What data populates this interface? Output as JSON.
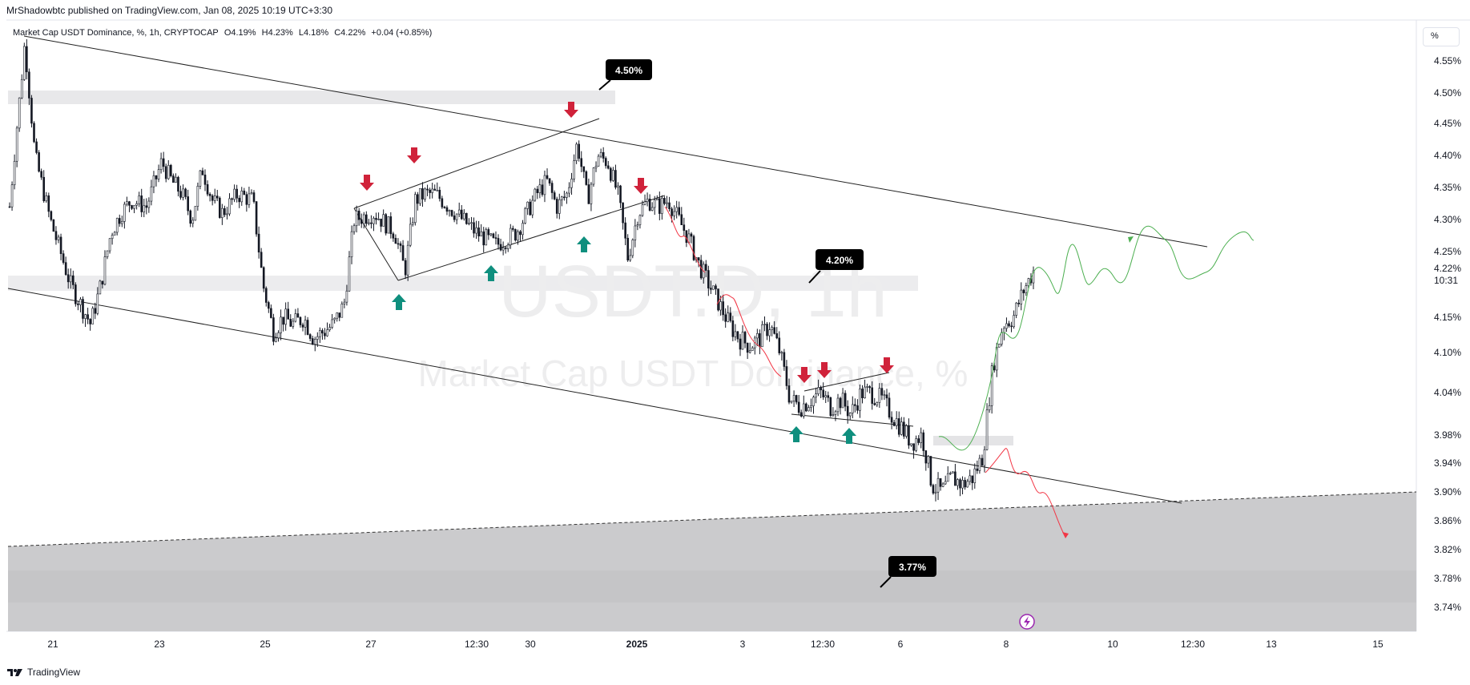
{
  "header": {
    "publisher_line": "MrShadowbtc published on TradingView.com, Jan 08, 2025 10:19 UTC+3:30"
  },
  "legend": {
    "symbol": "Market Cap USDT Dominance, %, 1h, CRYPTOCAP",
    "open": "O4.19%",
    "high": "H4.23%",
    "low": "L4.18%",
    "close": "C4.22%",
    "change": "+0.04 (+0.85%)"
  },
  "watermark": {
    "line1": "USDT.D, 1h",
    "line2": "Market Cap USDT Dominance, %"
  },
  "unit_button": "%",
  "footer": {
    "brand": "TradingView",
    "logo": "tradingview-logo"
  },
  "colors": {
    "candle": "#131722",
    "down_arrow": "#d0223a",
    "up_arrow": "#0f8f7e",
    "forecast_up": "#4caf50",
    "forecast_down": "#f23645",
    "zone": "#e8e8ea",
    "lower_zone": "#c8c8ca",
    "badge": "#000000"
  },
  "chart_data": {
    "type": "candlestick",
    "symbol": "USDT.D",
    "interval": "1h",
    "ylim": [
      3.715,
      4.6
    ],
    "y_axis": "right",
    "y_ticks": [
      "4.55%",
      "4.50%",
      "4.45%",
      "4.40%",
      "4.35%",
      "4.30%",
      "4.25%",
      "4.15%",
      "4.10%",
      "4.04%",
      "3.98%",
      "3.94%",
      "3.90%",
      "3.86%",
      "3.82%",
      "3.78%",
      "3.74%"
    ],
    "last_price": {
      "label": "4.22%",
      "value": 4.22,
      "countdown": "10:31"
    },
    "x_ticks": [
      {
        "label": "21",
        "bold": false
      },
      {
        "label": "23",
        "bold": false
      },
      {
        "label": "25",
        "bold": false
      },
      {
        "label": "27",
        "bold": false
      },
      {
        "label": "12:30",
        "bold": false
      },
      {
        "label": "30",
        "bold": false
      },
      {
        "label": "2025",
        "bold": true
      },
      {
        "label": "3",
        "bold": false
      },
      {
        "label": "12:30",
        "bold": false
      },
      {
        "label": "6",
        "bold": false
      },
      {
        "label": "8",
        "bold": false
      },
      {
        "label": "10",
        "bold": false
      },
      {
        "label": "12:30",
        "bold": false
      },
      {
        "label": "13",
        "bold": false
      },
      {
        "label": "15",
        "bold": false
      }
    ],
    "price_path": [
      [
        0,
        4.32
      ],
      [
        1.5,
        4.58
      ],
      [
        2.5,
        4.4
      ],
      [
        4,
        4.3
      ],
      [
        6,
        4.2
      ],
      [
        8,
        4.14
      ],
      [
        9,
        4.2
      ],
      [
        10,
        4.28
      ],
      [
        11,
        4.31
      ],
      [
        12,
        4.33
      ],
      [
        13.5,
        4.32
      ],
      [
        15,
        4.39
      ],
      [
        16,
        4.36
      ],
      [
        17,
        4.34
      ],
      [
        18,
        4.3
      ],
      [
        19,
        4.38
      ],
      [
        20,
        4.33
      ],
      [
        21,
        4.31
      ],
      [
        22.5,
        4.34
      ],
      [
        24,
        4.33
      ],
      [
        25,
        4.2
      ],
      [
        26,
        4.13
      ],
      [
        27,
        4.15
      ],
      [
        28,
        4.14
      ],
      [
        29,
        4.15
      ],
      [
        30,
        4.12
      ],
      [
        32,
        4.14
      ],
      [
        33,
        4.17
      ],
      [
        34,
        4.3
      ],
      [
        36,
        4.31
      ],
      [
        38,
        4.28
      ],
      [
        39,
        4.22
      ],
      [
        40,
        4.33
      ],
      [
        41,
        4.34
      ],
      [
        42,
        4.34
      ],
      [
        44,
        4.31
      ],
      [
        46,
        4.28
      ],
      [
        48,
        4.26
      ],
      [
        50,
        4.28
      ],
      [
        52,
        4.34
      ],
      [
        53,
        4.36
      ],
      [
        54,
        4.32
      ],
      [
        55,
        4.34
      ],
      [
        56,
        4.42
      ],
      [
        57,
        4.33
      ],
      [
        58,
        4.4
      ],
      [
        59,
        4.39
      ],
      [
        60,
        4.34
      ],
      [
        61,
        4.24
      ],
      [
        62,
        4.31
      ],
      [
        63,
        4.33
      ],
      [
        64,
        4.32
      ],
      [
        65,
        4.33
      ],
      [
        66,
        4.3
      ],
      [
        67,
        4.27
      ],
      [
        68,
        4.23
      ],
      [
        69,
        4.2
      ],
      [
        70,
        4.17
      ],
      [
        71,
        4.14
      ],
      [
        72,
        4.12
      ],
      [
        73,
        4.11
      ],
      [
        74,
        4.12
      ],
      [
        75,
        4.14
      ],
      [
        76,
        4.1
      ],
      [
        77,
        4.03
      ],
      [
        78,
        4.02
      ],
      [
        79,
        4.03
      ],
      [
        80,
        4.04
      ],
      [
        81,
        4.02
      ],
      [
        82,
        4.03
      ],
      [
        83,
        4.01
      ],
      [
        84,
        4.04
      ],
      [
        85,
        4.04
      ],
      [
        86,
        4.03
      ],
      [
        87,
        4.01
      ],
      [
        88,
        3.99
      ],
      [
        89,
        3.97
      ],
      [
        90,
        3.98
      ],
      [
        91,
        3.91
      ],
      [
        92,
        3.9
      ],
      [
        93,
        3.92
      ],
      [
        94,
        3.91
      ],
      [
        95,
        3.92
      ],
      [
        96,
        3.95
      ],
      [
        97,
        4.08
      ],
      [
        98,
        4.14
      ],
      [
        99,
        4.15
      ],
      [
        100,
        4.19
      ],
      [
        101,
        4.22
      ]
    ],
    "price_path_x_unit": "bar index",
    "annotations": [
      {
        "type": "badge",
        "label": "4.50%",
        "value": 4.5
      },
      {
        "type": "badge",
        "label": "4.20%",
        "value": 4.2
      },
      {
        "type": "badge",
        "label": "3.77%",
        "value": 3.77
      }
    ],
    "grid": false,
    "legend_position": "top-left"
  }
}
